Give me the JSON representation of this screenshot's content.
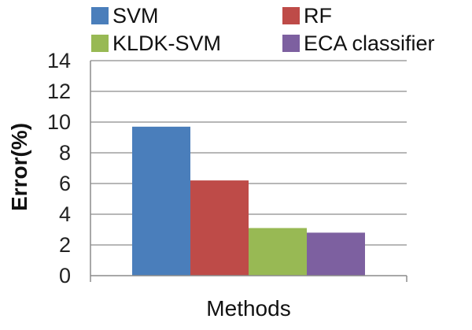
{
  "chart_data": {
    "type": "bar",
    "categories": [
      ""
    ],
    "series": [
      {
        "name": "SVM",
        "values": [
          9.7
        ],
        "color": "#4a7ebb"
      },
      {
        "name": "RF",
        "values": [
          6.2
        ],
        "color": "#be4b48"
      },
      {
        "name": "KLDK-SVM",
        "values": [
          3.1
        ],
        "color": "#98b954"
      },
      {
        "name": "ECA classifier",
        "values": [
          2.8
        ],
        "color": "#7d60a0"
      }
    ],
    "title": "",
    "xlabel": "Methods",
    "ylabel": "Error(%)",
    "ylim": [
      0,
      14
    ],
    "yticks": [
      "0",
      "2",
      "4",
      "6",
      "8",
      "10",
      "12",
      "14"
    ],
    "grid": true,
    "legend_position": "top"
  }
}
